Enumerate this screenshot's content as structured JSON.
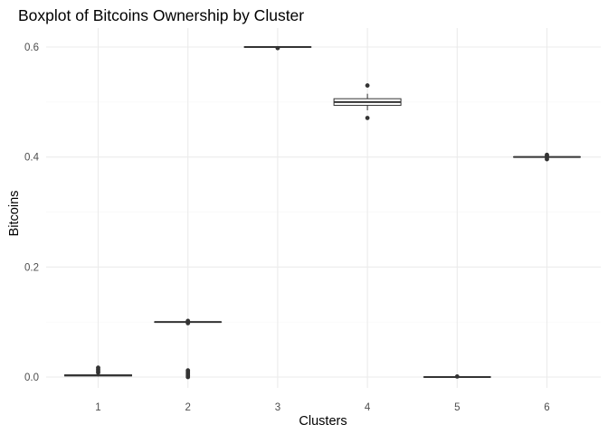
{
  "chart_data": {
    "type": "box",
    "title": "Boxplot of Bitcoins Ownership by Cluster",
    "xlabel": "Clusters",
    "ylabel": "Bitcoins",
    "categories": [
      "1",
      "2",
      "3",
      "4",
      "5",
      "6"
    ],
    "ylim": [
      -0.02,
      0.625
    ],
    "yticks": [
      0.0,
      0.2,
      0.4,
      0.6
    ],
    "ytick_labels": [
      "0.0",
      "0.2",
      "0.4",
      "0.6"
    ],
    "grid": true,
    "colors": {
      "box_stroke": "#333333",
      "point": "#333333",
      "fill": "#ffffff"
    },
    "boxes": [
      {
        "category": "1",
        "whisker_low": 0.001,
        "q1": 0.002,
        "median": 0.003,
        "q3": 0.004,
        "whisker_high": 0.005,
        "outliers": [
          0.008,
          0.011,
          0.014,
          0.017
        ]
      },
      {
        "category": "2",
        "whisker_low": 0.1,
        "q1": 0.1,
        "median": 0.1,
        "q3": 0.1,
        "whisker_high": 0.1,
        "outliers": [
          0.0,
          0.003,
          0.006,
          0.009,
          0.012,
          0.098,
          0.102
        ]
      },
      {
        "category": "3",
        "whisker_low": 0.6,
        "q1": 0.6,
        "median": 0.6,
        "q3": 0.6,
        "whisker_high": 0.6,
        "outliers": [
          0.598
        ]
      },
      {
        "category": "4",
        "whisker_low": 0.485,
        "q1": 0.494,
        "median": 0.5,
        "q3": 0.506,
        "whisker_high": 0.515,
        "outliers": [
          0.471,
          0.53
        ]
      },
      {
        "category": "5",
        "whisker_low": 0.0,
        "q1": 0.0,
        "median": 0.0,
        "q3": 0.0,
        "whisker_high": 0.0,
        "outliers": [
          0.001
        ]
      },
      {
        "category": "6",
        "whisker_low": 0.4,
        "q1": 0.4,
        "median": 0.4,
        "q3": 0.4,
        "whisker_high": 0.4,
        "outliers": [
          0.396,
          0.399,
          0.402,
          0.404
        ]
      }
    ]
  }
}
